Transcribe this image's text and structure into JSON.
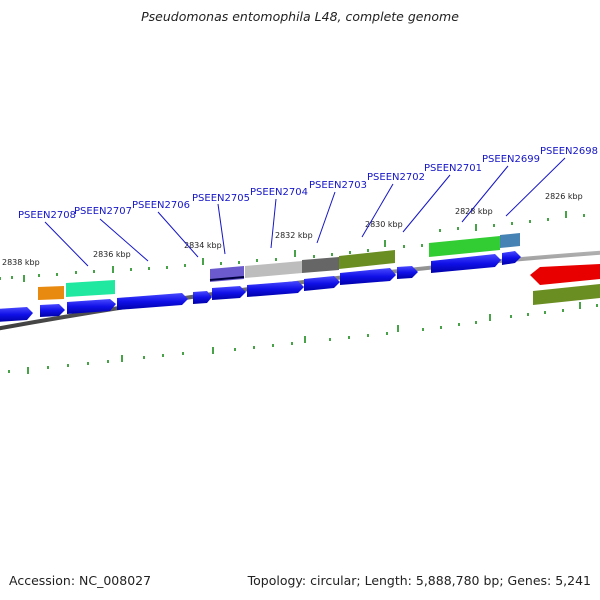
{
  "title": "Pseudomonas entomophila L48, complete genome",
  "footer": {
    "accession": "Accession: NC_008027",
    "summary": "Topology: circular; Length: 5,888,780 bp; Genes: 5,241"
  },
  "tick_labels": [
    "2838 kbp",
    "2836 kbp",
    "2834 kbp",
    "2832 kbp",
    "2830 kbp",
    "2828 kbp",
    "2826 kbp"
  ],
  "gene_labels": [
    "PSEEN2708",
    "PSEEN2707",
    "PSEEN2706",
    "PSEEN2705",
    "PSEEN2704",
    "PSEEN2703",
    "PSEEN2702",
    "PSEEN2701",
    "PSEEN2699",
    "PSEEN2698"
  ],
  "colors": {
    "cds": "#1010e8",
    "backbone": "#777777",
    "tick": "#1a8a1a",
    "label": "#1515c8",
    "orange": "#e88a10",
    "teal": "#20e8a0",
    "purple": "#6a5acd",
    "silver": "#bdbdbd",
    "gray": "#666666",
    "olive": "#6b8e23",
    "green": "#32cd32",
    "steelblue": "#4682b4",
    "red": "#e80000"
  }
}
